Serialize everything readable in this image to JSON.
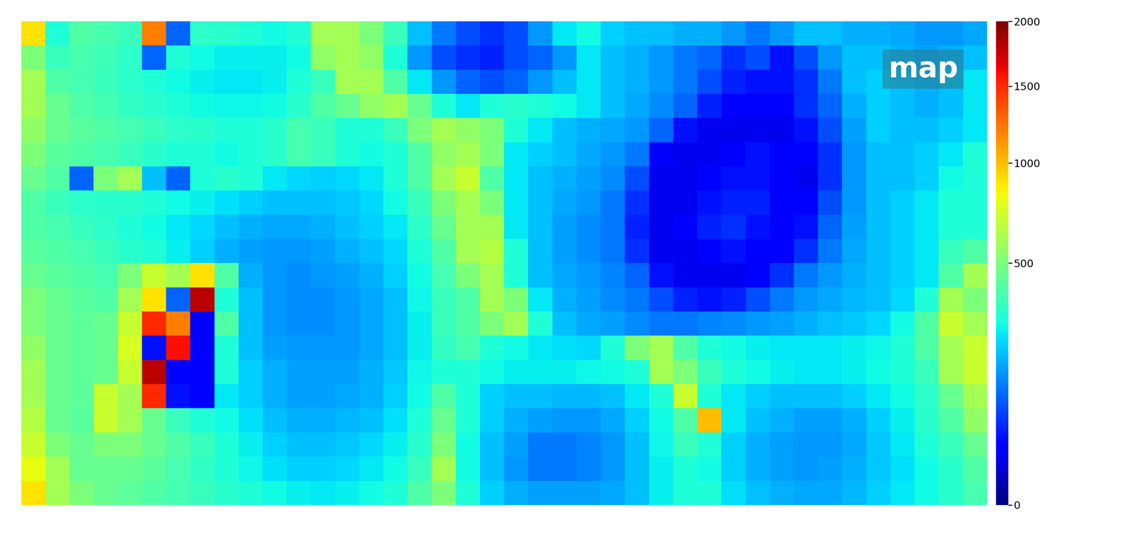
{
  "chart_data": {
    "type": "heatmap",
    "title": "map",
    "color": "jet",
    "tick_labels": false,
    "values": [
      [
        900,
        300,
        400,
        380,
        350,
        1200,
        100,
        330,
        320,
        300,
        280,
        300,
        600,
        600,
        500,
        350,
        200,
        120,
        80,
        60,
        80,
        150,
        250,
        280,
        220,
        200,
        200,
        180,
        180,
        150,
        120,
        150,
        200,
        200,
        180,
        180,
        170,
        150,
        150,
        170
      ],
      [
        500,
        350,
        380,
        360,
        330,
        100,
        300,
        280,
        260,
        260,
        260,
        280,
        550,
        600,
        550,
        300,
        150,
        80,
        60,
        50,
        80,
        100,
        150,
        250,
        200,
        180,
        150,
        120,
        100,
        60,
        80,
        40,
        80,
        150,
        200,
        200,
        180,
        160,
        180,
        200
      ],
      [
        600,
        400,
        380,
        350,
        330,
        300,
        280,
        260,
        250,
        250,
        260,
        300,
        350,
        600,
        600,
        400,
        250,
        150,
        100,
        80,
        100,
        150,
        200,
        250,
        200,
        180,
        150,
        120,
        80,
        50,
        40,
        40,
        60,
        120,
        200,
        220,
        200,
        180,
        200,
        250
      ],
      [
        600,
        450,
        400,
        370,
        340,
        320,
        300,
        280,
        270,
        270,
        280,
        320,
        400,
        450,
        550,
        600,
        450,
        300,
        250,
        300,
        320,
        300,
        280,
        250,
        200,
        170,
        140,
        100,
        50,
        30,
        30,
        30,
        60,
        100,
        180,
        220,
        200,
        180,
        200,
        250
      ],
      [
        550,
        450,
        420,
        400,
        380,
        350,
        330,
        320,
        300,
        300,
        320,
        380,
        350,
        300,
        300,
        350,
        500,
        600,
        550,
        500,
        300,
        250,
        200,
        180,
        170,
        150,
        100,
        40,
        20,
        20,
        20,
        20,
        40,
        80,
        160,
        220,
        200,
        200,
        220,
        250
      ],
      [
        500,
        420,
        400,
        380,
        350,
        320,
        300,
        300,
        280,
        300,
        320,
        380,
        350,
        300,
        280,
        300,
        400,
        550,
        600,
        500,
        250,
        220,
        200,
        170,
        150,
        120,
        30,
        20,
        20,
        30,
        40,
        30,
        30,
        60,
        150,
        200,
        200,
        220,
        250,
        300
      ],
      [
        450,
        400,
        100,
        500,
        600,
        200,
        100,
        300,
        320,
        300,
        250,
        230,
        220,
        230,
        250,
        300,
        400,
        600,
        700,
        400,
        250,
        200,
        180,
        160,
        140,
        80,
        20,
        20,
        30,
        40,
        40,
        30,
        20,
        60,
        150,
        200,
        200,
        220,
        280,
        300
      ],
      [
        400,
        350,
        330,
        320,
        320,
        300,
        280,
        260,
        240,
        220,
        200,
        200,
        200,
        210,
        230,
        280,
        350,
        500,
        600,
        500,
        250,
        200,
        170,
        150,
        120,
        60,
        20,
        20,
        40,
        50,
        50,
        30,
        30,
        80,
        150,
        200,
        220,
        250,
        300,
        300
      ],
      [
        400,
        380,
        350,
        330,
        300,
        280,
        250,
        230,
        200,
        180,
        170,
        170,
        180,
        200,
        220,
        250,
        330,
        450,
        600,
        600,
        250,
        200,
        160,
        140,
        120,
        50,
        20,
        30,
        50,
        60,
        40,
        30,
        40,
        100,
        160,
        200,
        220,
        250,
        300,
        300
      ],
      [
        420,
        400,
        380,
        350,
        320,
        300,
        260,
        220,
        180,
        160,
        150,
        150,
        160,
        180,
        200,
        230,
        300,
        400,
        600,
        650,
        300,
        200,
        160,
        140,
        120,
        60,
        20,
        20,
        30,
        40,
        30,
        30,
        60,
        120,
        170,
        200,
        220,
        250,
        350,
        400
      ],
      [
        450,
        420,
        400,
        380,
        500,
        700,
        600,
        900,
        400,
        180,
        150,
        140,
        150,
        160,
        180,
        220,
        280,
        380,
        500,
        600,
        300,
        200,
        170,
        150,
        130,
        100,
        40,
        20,
        20,
        20,
        30,
        60,
        120,
        150,
        180,
        200,
        220,
        250,
        400,
        600
      ],
      [
        500,
        450,
        420,
        400,
        600,
        900,
        100,
        1800,
        300,
        200,
        150,
        140,
        140,
        150,
        170,
        200,
        270,
        350,
        400,
        600,
        500,
        250,
        180,
        160,
        140,
        120,
        80,
        50,
        40,
        50,
        80,
        120,
        150,
        170,
        190,
        200,
        230,
        300,
        600,
        500
      ],
      [
        500,
        450,
        430,
        450,
        700,
        1500,
        1200,
        30,
        400,
        200,
        150,
        140,
        140,
        150,
        170,
        200,
        260,
        350,
        400,
        500,
        600,
        300,
        200,
        170,
        160,
        140,
        120,
        120,
        130,
        140,
        150,
        160,
        180,
        200,
        210,
        230,
        280,
        400,
        700,
        600
      ],
      [
        550,
        450,
        430,
        450,
        750,
        40,
        1600,
        30,
        300,
        200,
        160,
        150,
        150,
        150,
        170,
        200,
        260,
        340,
        380,
        300,
        280,
        250,
        240,
        230,
        300,
        500,
        600,
        400,
        300,
        280,
        260,
        250,
        250,
        250,
        260,
        270,
        300,
        400,
        600,
        700
      ],
      [
        600,
        450,
        430,
        450,
        700,
        1800,
        30,
        30,
        300,
        220,
        180,
        160,
        160,
        160,
        180,
        210,
        270,
        300,
        300,
        280,
        260,
        260,
        260,
        270,
        280,
        300,
        600,
        500,
        350,
        300,
        280,
        260,
        250,
        250,
        260,
        280,
        300,
        350,
        600,
        700
      ],
      [
        600,
        450,
        430,
        700,
        600,
        1500,
        40,
        30,
        250,
        220,
        180,
        160,
        160,
        170,
        180,
        220,
        280,
        400,
        300,
        220,
        200,
        200,
        190,
        190,
        200,
        250,
        300,
        700,
        300,
        250,
        220,
        200,
        200,
        200,
        220,
        250,
        280,
        330,
        450,
        600
      ],
      [
        650,
        450,
        420,
        700,
        600,
        450,
        350,
        300,
        280,
        240,
        200,
        180,
        180,
        190,
        200,
        240,
        300,
        450,
        300,
        220,
        180,
        160,
        150,
        150,
        170,
        220,
        280,
        400,
        1000,
        250,
        200,
        180,
        160,
        160,
        180,
        220,
        260,
        320,
        400,
        550
      ],
      [
        700,
        500,
        450,
        500,
        500,
        450,
        400,
        350,
        300,
        260,
        220,
        200,
        200,
        210,
        230,
        260,
        320,
        500,
        280,
        200,
        160,
        120,
        120,
        130,
        150,
        200,
        270,
        350,
        300,
        220,
        180,
        160,
        150,
        150,
        170,
        210,
        250,
        300,
        350,
        450
      ],
      [
        800,
        600,
        450,
        450,
        450,
        420,
        380,
        340,
        300,
        270,
        240,
        220,
        220,
        230,
        250,
        280,
        350,
        600,
        280,
        200,
        150,
        120,
        120,
        130,
        150,
        200,
        260,
        300,
        280,
        220,
        180,
        160,
        150,
        160,
        180,
        210,
        240,
        280,
        320,
        400
      ],
      [
        900,
        600,
        500,
        450,
        430,
        400,
        380,
        350,
        320,
        300,
        280,
        260,
        250,
        260,
        280,
        300,
        400,
        500,
        300,
        220,
        180,
        160,
        160,
        160,
        170,
        200,
        260,
        300,
        300,
        240,
        200,
        180,
        170,
        170,
        190,
        220,
        250,
        280,
        320,
        380
      ]
    ],
    "colorbar": {
      "range": [
        0,
        2000
      ],
      "ticks": [
        0,
        500,
        1000,
        1500,
        2000
      ]
    }
  }
}
